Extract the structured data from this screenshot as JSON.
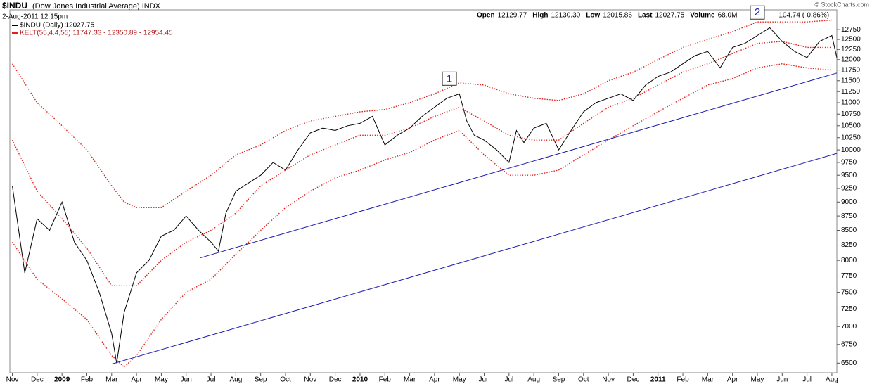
{
  "header": {
    "symbol": "$INDU",
    "name": "(Dow Jones Industrial Average) INDX",
    "date": "2-Aug-2011 12:15pm",
    "quote": [
      {
        "label": "Open",
        "value": "12129.77"
      },
      {
        "label": "High",
        "value": "12130.30"
      },
      {
        "label": "Low",
        "value": "12015.86"
      },
      {
        "label": "Last",
        "value": "12027.75"
      },
      {
        "label": "Volume",
        "value": "68.0M"
      }
    ],
    "change": "-104.74 (-0.86%)",
    "credit": "© StockCharts.com"
  },
  "chart_data": {
    "type": "line",
    "log_scale": true,
    "legend": "upper left",
    "xlim": [
      -0.1,
      33.2
    ],
    "ylim": [
      6375,
      13270
    ],
    "xticks": [
      {
        "value": 0,
        "label": "Nov"
      },
      {
        "value": 1,
        "label": "Dec"
      },
      {
        "value": 2,
        "label": "2009"
      },
      {
        "value": 3,
        "label": "Feb"
      },
      {
        "value": 4,
        "label": "Mar"
      },
      {
        "value": 5,
        "label": "Apr"
      },
      {
        "value": 6,
        "label": "May"
      },
      {
        "value": 7,
        "label": "Jun"
      },
      {
        "value": 8,
        "label": "Jul"
      },
      {
        "value": 9,
        "label": "Aug"
      },
      {
        "value": 10,
        "label": "Sep"
      },
      {
        "value": 11,
        "label": "Oct"
      },
      {
        "value": 12,
        "label": "Nov"
      },
      {
        "value": 13,
        "label": "Dec"
      },
      {
        "value": 14,
        "label": "2010"
      },
      {
        "value": 15,
        "label": "Feb"
      },
      {
        "value": 16,
        "label": "Mar"
      },
      {
        "value": 17,
        "label": "Apr"
      },
      {
        "value": 18,
        "label": "May"
      },
      {
        "value": 19,
        "label": "Jun"
      },
      {
        "value": 20,
        "label": "Jul"
      },
      {
        "value": 21,
        "label": "Aug"
      },
      {
        "value": 22,
        "label": "Sep"
      },
      {
        "value": 23,
        "label": "Oct"
      },
      {
        "value": 24,
        "label": "Nov"
      },
      {
        "value": 25,
        "label": "Dec"
      },
      {
        "value": 26,
        "label": "2011"
      },
      {
        "value": 27,
        "label": "Feb"
      },
      {
        "value": 28,
        "label": "Mar"
      },
      {
        "value": 29,
        "label": "Apr"
      },
      {
        "value": 30,
        "label": "May"
      },
      {
        "value": 31,
        "label": "Jun"
      },
      {
        "value": 32,
        "label": "Jul"
      },
      {
        "value": 33,
        "label": "Aug"
      }
    ],
    "yticks": [
      6500,
      6750,
      7000,
      7250,
      7500,
      7750,
      8000,
      8250,
      8500,
      8750,
      9000,
      9250,
      9500,
      9750,
      10000,
      10250,
      10500,
      10750,
      11000,
      11250,
      11500,
      11750,
      12000,
      12250,
      12500,
      12750
    ],
    "series": [
      {
        "name": "$INDU (Daily) 12027.75",
        "color": "#000000",
        "style": "solid",
        "x": [
          0,
          0.5,
          1,
          1.5,
          2,
          2.5,
          3,
          3.5,
          4,
          4.2,
          4.5,
          5,
          5.5,
          6,
          6.5,
          7,
          7.5,
          8,
          8.3,
          8.6,
          9,
          9.5,
          10,
          10.5,
          11,
          11.5,
          12,
          12.5,
          13,
          13.5,
          14,
          14.5,
          15,
          15.5,
          16,
          16.5,
          17,
          17.5,
          18,
          18.3,
          18.6,
          19,
          19.5,
          20,
          20.3,
          20.6,
          21,
          21.5,
          22,
          22.5,
          23,
          23.5,
          24,
          24.5,
          25,
          25.5,
          26,
          26.5,
          27,
          27.5,
          28,
          28.5,
          29,
          29.5,
          30,
          30.5,
          31,
          31.5,
          32,
          32.5,
          33,
          33.2
        ],
        "values": [
          9300,
          7800,
          8700,
          8500,
          9000,
          8300,
          8000,
          7500,
          6900,
          6500,
          7200,
          7800,
          8000,
          8400,
          8500,
          8750,
          8500,
          8300,
          8150,
          8800,
          9200,
          9350,
          9500,
          9750,
          9600,
          10000,
          10350,
          10450,
          10400,
          10500,
          10550,
          10700,
          10100,
          10300,
          10450,
          10700,
          10900,
          11100,
          11200,
          10600,
          10300,
          10200,
          10000,
          9750,
          10400,
          10150,
          10450,
          10550,
          10000,
          10400,
          10800,
          11000,
          11100,
          11200,
          11050,
          11400,
          11600,
          11700,
          11900,
          12100,
          12200,
          11800,
          12300,
          12400,
          12600,
          12800,
          12450,
          12200,
          12050,
          12450,
          12600,
          12050
        ]
      },
      {
        "name": "KELT(55,4.4,55) 11747.33 - 12350.89 - 12954.45",
        "color": "#e0201a",
        "style": "dotted",
        "x": [
          0,
          1,
          2,
          3,
          4,
          4.5,
          5,
          6,
          7,
          8,
          9,
          10,
          11,
          12,
          13,
          14,
          15,
          16,
          17,
          18,
          19,
          20,
          21,
          22,
          23,
          24,
          25,
          26,
          27,
          28,
          29,
          30,
          31,
          32,
          33
        ],
        "values": [
          11900,
          11000,
          10500,
          10000,
          9300,
          9000,
          8900,
          8900,
          9200,
          9500,
          9900,
          10100,
          10400,
          10600,
          10700,
          10800,
          10850,
          11000,
          11200,
          11450,
          11400,
          11200,
          11100,
          11050,
          11200,
          11500,
          11700,
          12000,
          12300,
          12500,
          12700,
          12950,
          12950,
          12950,
          13000
        ]
      },
      {
        "color": "#e0201a",
        "style": "dotted",
        "x": [
          0,
          1,
          2,
          3,
          4,
          5,
          6,
          7,
          8,
          9,
          10,
          11,
          12,
          13,
          14,
          15,
          16,
          17,
          18,
          19,
          20,
          21,
          22,
          23,
          24,
          25,
          26,
          27,
          28,
          29,
          30,
          31,
          32,
          33
        ],
        "values": [
          10200,
          9200,
          8700,
          8200,
          7600,
          7600,
          8000,
          8300,
          8500,
          8800,
          9300,
          9600,
          9900,
          10100,
          10300,
          10300,
          10450,
          10700,
          10900,
          10600,
          10300,
          10200,
          10200,
          10550,
          10900,
          11100,
          11400,
          11700,
          11900,
          12150,
          12400,
          12450,
          12300,
          12300
        ]
      },
      {
        "color": "#e0201a",
        "style": "dotted",
        "x": [
          0,
          1,
          2,
          3,
          4,
          4.5,
          5,
          6,
          7,
          8,
          9,
          10,
          11,
          12,
          13,
          14,
          15,
          16,
          17,
          18,
          19,
          20,
          21,
          22,
          23,
          24,
          25,
          26,
          27,
          28,
          29,
          30,
          31,
          32,
          33
        ],
        "values": [
          8300,
          7700,
          7400,
          7100,
          6600,
          6450,
          6600,
          7100,
          7500,
          7700,
          8100,
          8500,
          8900,
          9200,
          9450,
          9600,
          9800,
          9950,
          10200,
          10400,
          9900,
          9500,
          9500,
          9600,
          9900,
          10200,
          10500,
          10800,
          11100,
          11400,
          11550,
          11800,
          11900,
          11800,
          11750
        ]
      },
      {
        "color": "#1c1cb0",
        "style": "solid",
        "x": [
          7.56,
          33.2
        ],
        "values": [
          8040,
          11680
        ]
      },
      {
        "color": "#1c1cb0",
        "style": "solid",
        "x": [
          4.02,
          33.2
        ],
        "values": [
          6490,
          9930
        ]
      }
    ],
    "annotations": [
      {
        "text": "1",
        "x": 17.6,
        "y": 11540
      },
      {
        "text": "2",
        "x": 30.0,
        "y": 13190
      }
    ]
  }
}
